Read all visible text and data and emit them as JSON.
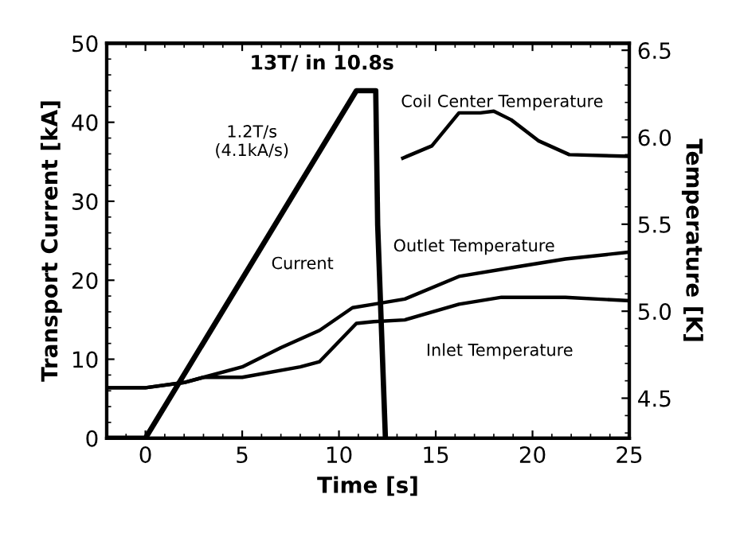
{
  "chart_data": {
    "type": "line",
    "title": "13T/ in 10.8s",
    "xlabel": "Time [s]",
    "ylabel": "Transport Current [kA]",
    "y2label": "Temperature [K]",
    "xlim": [
      -2,
      25
    ],
    "xticks": [
      0,
      5,
      10,
      15,
      20,
      25
    ],
    "ylim": [
      0,
      50
    ],
    "yticks": [
      0,
      10,
      20,
      30,
      40,
      50
    ],
    "y2lim": [
      4.27,
      6.54
    ],
    "y2ticks": [
      {
        "value": 4.5,
        "label": "4.5"
      },
      {
        "value": 5.0,
        "label": "5.0"
      },
      {
        "value": 5.5,
        "label": "5.5"
      },
      {
        "value": 6.0,
        "label": "6.0"
      },
      {
        "value": 6.5,
        "label": "6.5"
      }
    ],
    "annotations": [
      "1.2T/s\n(4.1kA/s)"
    ],
    "grid": false,
    "legend": false,
    "marker": "none",
    "line_style": "solid",
    "series": [
      {
        "name": "Current",
        "color": "#000000",
        "x": [
          -2,
          0,
          10.9,
          11.9,
          12.0,
          12.4
        ],
        "values": [
          0,
          0,
          44,
          44,
          27,
          0
        ]
      },
      {
        "name": "Coil Center Temperature",
        "color": "#000000",
        "axis": "y2",
        "x": [
          13.3,
          14.8,
          16.2,
          17.3,
          18,
          18.9,
          20.3,
          21.9,
          25
        ],
        "values": [
          5.88,
          5.95,
          6.14,
          6.14,
          6.15,
          6.1,
          5.98,
          5.9,
          5.89
        ]
      },
      {
        "name": "Outlet Temperature",
        "color": "#000000",
        "axis": "y2",
        "x": [
          -2,
          0,
          2,
          3,
          5,
          7,
          9,
          10.7,
          11.8,
          13.4,
          16.2,
          18.9,
          21.7,
          25
        ],
        "values": [
          4.56,
          4.56,
          4.59,
          4.62,
          4.68,
          4.79,
          4.89,
          5.02,
          5.04,
          5.07,
          5.2,
          5.25,
          5.3,
          5.34
        ]
      },
      {
        "name": "Inlet Temperature",
        "color": "#000000",
        "axis": "y2",
        "x": [
          -2,
          0,
          2,
          3,
          5,
          8,
          9,
          10.9,
          11.8,
          13.4,
          16.2,
          18.4,
          21.7,
          25
        ],
        "values": [
          4.56,
          4.56,
          4.59,
          4.62,
          4.62,
          4.68,
          4.71,
          4.93,
          4.94,
          4.95,
          5.04,
          5.08,
          5.08,
          5.06
        ]
      }
    ]
  }
}
